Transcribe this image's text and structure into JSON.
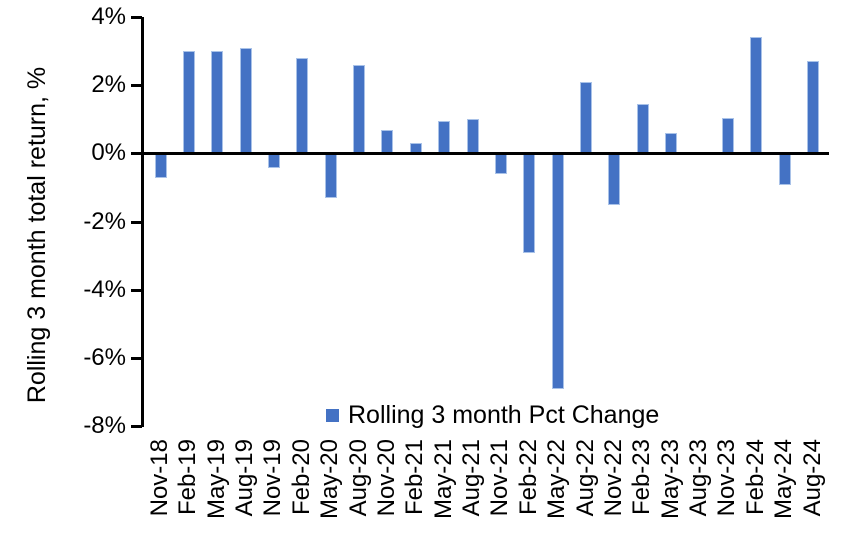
{
  "chart_data": {
    "type": "bar",
    "title": "",
    "xlabel": "",
    "ylabel": "Rolling 3 month total return, %",
    "categories": [
      "Nov-18",
      "Feb-19",
      "May-19",
      "Aug-19",
      "Nov-19",
      "Feb-20",
      "May-20",
      "Aug-20",
      "Nov-20",
      "Feb-21",
      "May-21",
      "Aug-21",
      "Nov-21",
      "Feb-22",
      "May-22",
      "Aug-22",
      "Nov-22",
      "Feb-23",
      "May-23",
      "Aug-23",
      "Nov-23",
      "Feb-24",
      "May-24",
      "Aug-24"
    ],
    "values": [
      -0.7,
      3.0,
      3.0,
      3.1,
      -0.4,
      2.8,
      -1.3,
      2.6,
      0.7,
      0.3,
      0.95,
      1.0,
      -0.6,
      -2.9,
      -6.9,
      2.1,
      -1.5,
      1.45,
      0.6,
      0.0,
      1.05,
      3.4,
      -0.9,
      2.7
    ],
    "ylim": [
      -8,
      4
    ],
    "ytick_values": [
      4,
      2,
      0,
      -2,
      -4,
      -6,
      -8
    ],
    "ytick_labels": [
      "4%",
      "2%",
      "0%",
      "-2%",
      "-4%",
      "-6%",
      "-8%"
    ],
    "grid": false,
    "legend": {
      "label": "Rolling 3 month Pct Change",
      "position": "bottom-center-inside"
    },
    "colors": {
      "bar_fill": "#4472C4",
      "bar_edge": "#A9C2E8",
      "axis": "#000000",
      "background": "#FFFFFF"
    }
  }
}
